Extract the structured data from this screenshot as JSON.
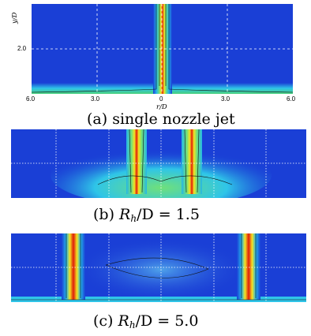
{
  "panel_a": {
    "y_axis_label": "y/D",
    "y_tick": "2.0",
    "x_axis_label": "r/D",
    "x_ticks": [
      "6.0",
      "3.0",
      "0",
      "3.0",
      "6.0"
    ],
    "caption": "(a) single nozzle jet"
  },
  "panel_b": {
    "caption_prefix": "(b) ",
    "caption_var": "R",
    "caption_sub": "h",
    "caption_rest": "/D = 1.5"
  },
  "panel_c": {
    "caption_prefix": "(c) ",
    "caption_var": "R",
    "caption_sub": "h",
    "caption_rest": "/D = 5.0"
  },
  "colors": {
    "background_field": "#1a3fd6",
    "jet_core": "#e01b0b",
    "grid": "#ffffff"
  }
}
